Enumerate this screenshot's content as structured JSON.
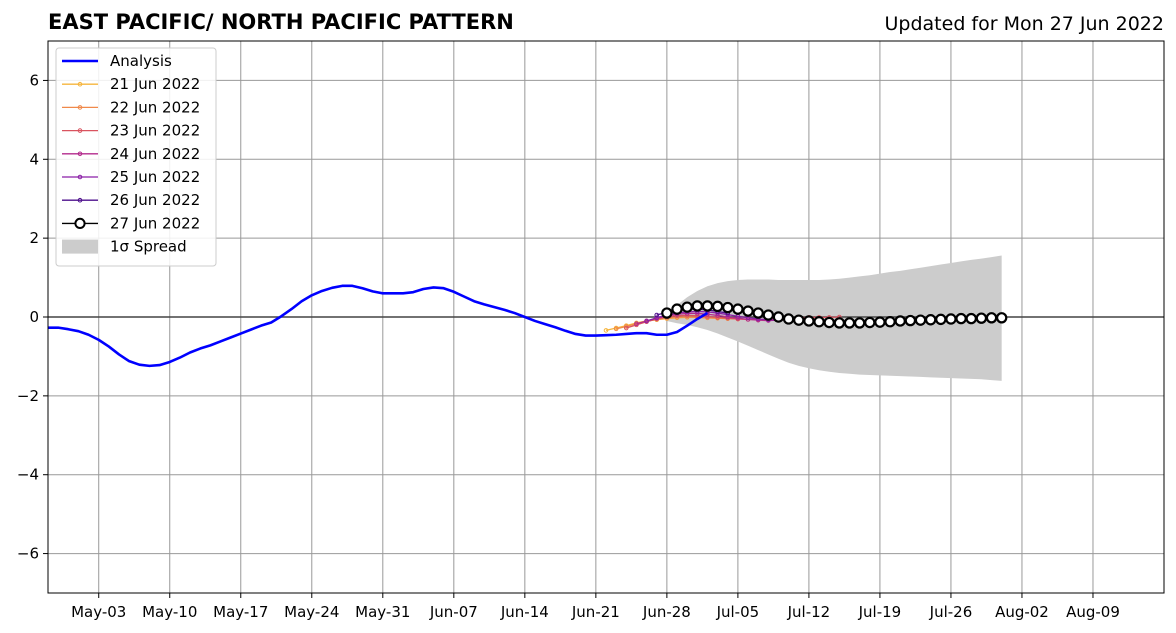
{
  "chart_data": {
    "type": "line",
    "title": "EAST PACIFIC/ NORTH PACIFIC PATTERN",
    "subtitle": "Updated for Mon 27 Jun 2022",
    "xlabel": "",
    "ylabel": "",
    "x_start": "2022-04-28",
    "xlim": [
      "2022-04-28",
      "2022-08-16"
    ],
    "ylim": [
      -7,
      7
    ],
    "yticks": [
      -6,
      -4,
      -2,
      0,
      2,
      4,
      6
    ],
    "ytick_labels": [
      "−6",
      "−4",
      "−2",
      "0",
      "2",
      "4",
      "6"
    ],
    "xticks": [
      "2022-05-03",
      "2022-05-10",
      "2022-05-17",
      "2022-05-24",
      "2022-05-31",
      "2022-06-07",
      "2022-06-14",
      "2022-06-21",
      "2022-06-28",
      "2022-07-05",
      "2022-07-12",
      "2022-07-19",
      "2022-07-26",
      "2022-08-02",
      "2022-08-09"
    ],
    "xtick_labels": [
      "May-03",
      "May-10",
      "May-17",
      "May-24",
      "May-31",
      "Jun-07",
      "Jun-14",
      "Jun-21",
      "Jun-28",
      "Jul-05",
      "Jul-12",
      "Jul-19",
      "Jul-26",
      "Aug-02",
      "Aug-09"
    ],
    "grid": true,
    "legend_position": "upper-left",
    "analysis": {
      "name": "Analysis",
      "color": "#0000ff",
      "start": "2022-04-28",
      "values": [
        -0.27,
        -0.27,
        -0.31,
        -0.36,
        -0.45,
        -0.58,
        -0.75,
        -0.95,
        -1.12,
        -1.21,
        -1.24,
        -1.22,
        -1.14,
        -1.03,
        -0.9,
        -0.8,
        -0.72,
        -0.62,
        -0.52,
        -0.42,
        -0.32,
        -0.22,
        -0.14,
        0.02,
        0.2,
        0.4,
        0.55,
        0.66,
        0.74,
        0.79,
        0.79,
        0.73,
        0.65,
        0.6,
        0.6,
        0.6,
        0.63,
        0.71,
        0.75,
        0.73,
        0.64,
        0.52,
        0.4,
        0.32,
        0.25,
        0.18,
        0.1,
        0.0,
        -0.1,
        -0.18,
        -0.26,
        -0.35,
        -0.43,
        -0.47,
        -0.47,
        -0.46,
        -0.45,
        -0.43,
        -0.41,
        -0.41,
        -0.45,
        -0.45,
        -0.38,
        -0.22,
        -0.05,
        0.1
      ]
    },
    "forecasts": [
      {
        "name": "21 Jun 2022",
        "color": "#f6b43c",
        "start": "2022-06-22",
        "values": [
          -0.34,
          -0.28,
          -0.22,
          -0.15,
          -0.1,
          -0.07,
          -0.04,
          -0.02,
          -0.01,
          -0.01,
          -0.02,
          -0.03,
          -0.04,
          -0.05
        ]
      },
      {
        "name": "22 Jun 2022",
        "color": "#f0894a",
        "start": "2022-06-23",
        "values": [
          -0.3,
          -0.24,
          -0.17,
          -0.11,
          -0.06,
          -0.03,
          -0.01,
          0.0,
          -0.01,
          -0.02,
          -0.03,
          -0.04,
          -0.05,
          -0.06
        ]
      },
      {
        "name": "23 Jun 2022",
        "color": "#d9535f",
        "start": "2022-06-24",
        "values": [
          -0.28,
          -0.2,
          -0.12,
          -0.05,
          0.0,
          0.03,
          0.04,
          0.03,
          0.01,
          -0.01,
          -0.03,
          -0.05,
          -0.06,
          -0.07,
          -0.06,
          -0.04,
          -0.03,
          -0.02,
          -0.01,
          -0.01,
          -0.01,
          0.0
        ]
      },
      {
        "name": "24 Jun 2022",
        "color": "#b32a8c",
        "start": "2022-06-25",
        "values": [
          -0.17,
          -0.1,
          -0.03,
          0.03,
          0.07,
          0.09,
          0.09,
          0.07,
          0.04,
          0.0,
          -0.03,
          -0.06,
          -0.08,
          -0.09,
          -0.08,
          -0.07,
          -0.06
        ]
      },
      {
        "name": "25 Jun 2022",
        "color": "#8a1fa6",
        "start": "2022-06-26",
        "values": [
          -0.1,
          -0.02,
          0.05,
          0.1,
          0.13,
          0.14,
          0.13,
          0.1,
          0.06,
          0.02,
          -0.02,
          -0.05,
          -0.07,
          -0.08
        ]
      },
      {
        "name": "26 Jun 2022",
        "color": "#4d0f8c",
        "start": "2022-06-27",
        "values": [
          0.05,
          0.12,
          0.17,
          0.2,
          0.2,
          0.18,
          0.14,
          0.1
        ]
      }
    ],
    "current_forecast": {
      "name": "27 Jun 2022",
      "color": "#000000",
      "start": "2022-06-28",
      "values": [
        0.1,
        0.2,
        0.25,
        0.28,
        0.28,
        0.27,
        0.24,
        0.2,
        0.15,
        0.1,
        0.05,
        0.0,
        -0.05,
        -0.08,
        -0.1,
        -0.12,
        -0.14,
        -0.15,
        -0.15,
        -0.15,
        -0.14,
        -0.13,
        -0.12,
        -0.1,
        -0.09,
        -0.08,
        -0.07,
        -0.06,
        -0.05,
        -0.04,
        -0.04,
        -0.03,
        -0.02,
        -0.02
      ]
    },
    "spread": {
      "name": "1σ Spread",
      "color": "#cccccc",
      "start": "2022-06-28",
      "upper": [
        0.12,
        0.3,
        0.5,
        0.66,
        0.78,
        0.86,
        0.91,
        0.94,
        0.95,
        0.95,
        0.95,
        0.94,
        0.94,
        0.94,
        0.94,
        0.94,
        0.95,
        0.97,
        1.0,
        1.03,
        1.06,
        1.1,
        1.14,
        1.17,
        1.21,
        1.25,
        1.29,
        1.33,
        1.37,
        1.41,
        1.45,
        1.48,
        1.52,
        1.56
      ],
      "lower": [
        -0.1,
        -0.16,
        -0.2,
        -0.26,
        -0.33,
        -0.42,
        -0.52,
        -0.62,
        -0.73,
        -0.84,
        -0.95,
        -1.06,
        -1.16,
        -1.24,
        -1.3,
        -1.35,
        -1.39,
        -1.42,
        -1.44,
        -1.46,
        -1.47,
        -1.48,
        -1.49,
        -1.5,
        -1.51,
        -1.52,
        -1.53,
        -1.54,
        -1.55,
        -1.56,
        -1.57,
        -1.58,
        -1.6,
        -1.62
      ]
    }
  }
}
